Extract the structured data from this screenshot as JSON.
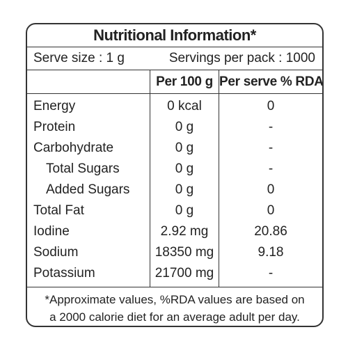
{
  "title": "Nutritional Information*",
  "serve_size": "Serve size : 1 g",
  "servings_per_pack": "Servings per pack : 1000",
  "header": {
    "per_100g": "Per 100 g",
    "per_serve_rda": "Per serve % RDA"
  },
  "rows": [
    [
      "Energy",
      "0 kcal",
      "0"
    ],
    [
      "Protein",
      "0 g",
      "-"
    ],
    [
      "Carbohydrate",
      "0 g",
      "-"
    ],
    [
      "Total Sugars",
      "0 g",
      "-"
    ],
    [
      "Added Sugars",
      "0 g",
      "0"
    ],
    [
      "Total Fat",
      "0 g",
      "0"
    ],
    [
      "Iodine",
      "2.92 mg",
      "20.86"
    ],
    [
      "Sodium",
      "18350 mg",
      "9.18"
    ],
    [
      "Potassium",
      "21700 mg",
      "-"
    ]
  ],
  "footnote": [
    "*Approximate values, %RDA values are based on",
    "a 2000 calorie diet for an average adult per day."
  ]
}
